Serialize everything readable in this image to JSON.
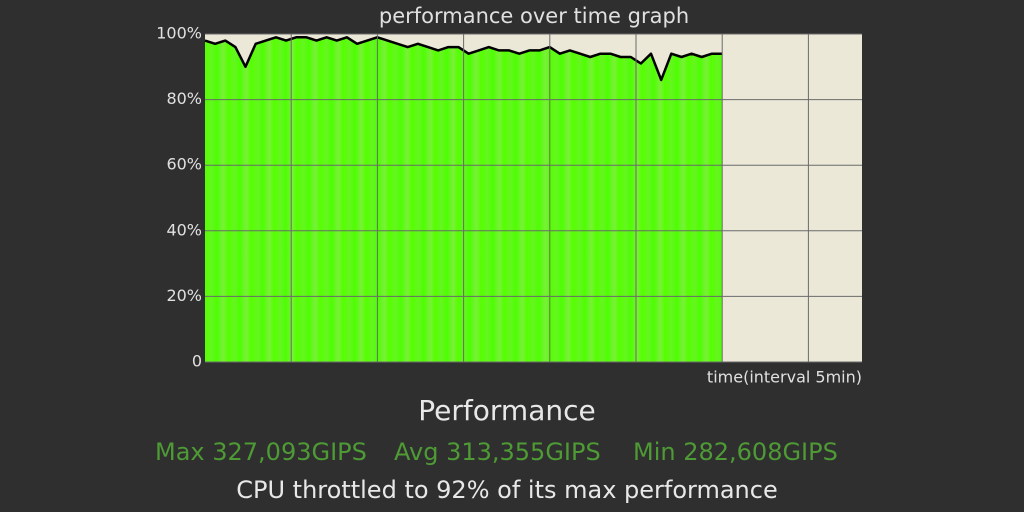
{
  "chart_data": {
    "type": "line",
    "title": "performance over time graph",
    "x_label": "time(interval 5min)",
    "series": [
      {
        "color": "#000000",
        "fill": "#4cff00",
        "values": [
          98,
          97,
          98,
          96,
          90,
          97,
          98,
          99,
          98,
          99,
          99,
          98,
          99,
          98,
          99,
          97,
          98,
          99,
          98,
          97,
          96,
          97,
          96,
          95,
          96,
          96,
          94,
          95,
          96,
          95,
          95,
          94,
          95,
          95,
          96,
          94,
          95,
          94,
          93,
          94,
          94,
          93,
          93,
          91,
          94,
          86,
          94,
          93,
          94,
          93,
          94,
          94
        ]
      }
    ],
    "ylim": [
      0,
      100
    ],
    "yticks": [
      0,
      {
        "value": 20,
        "label": "20%"
      },
      {
        "value": 40,
        "label": "40%"
      },
      {
        "value": 60,
        "label": "60%"
      },
      {
        "value": 80,
        "label": "80%"
      },
      {
        "value": 100,
        "label": "100%"
      }
    ],
    "grid": true
  },
  "summary": {
    "heading": "Performance",
    "stats": [
      "Max 327,093GIPS",
      "Avg 313,355GIPS",
      "Min 282,608GIPS"
    ],
    "note": "CPU throttled to 92% of its max performance"
  }
}
